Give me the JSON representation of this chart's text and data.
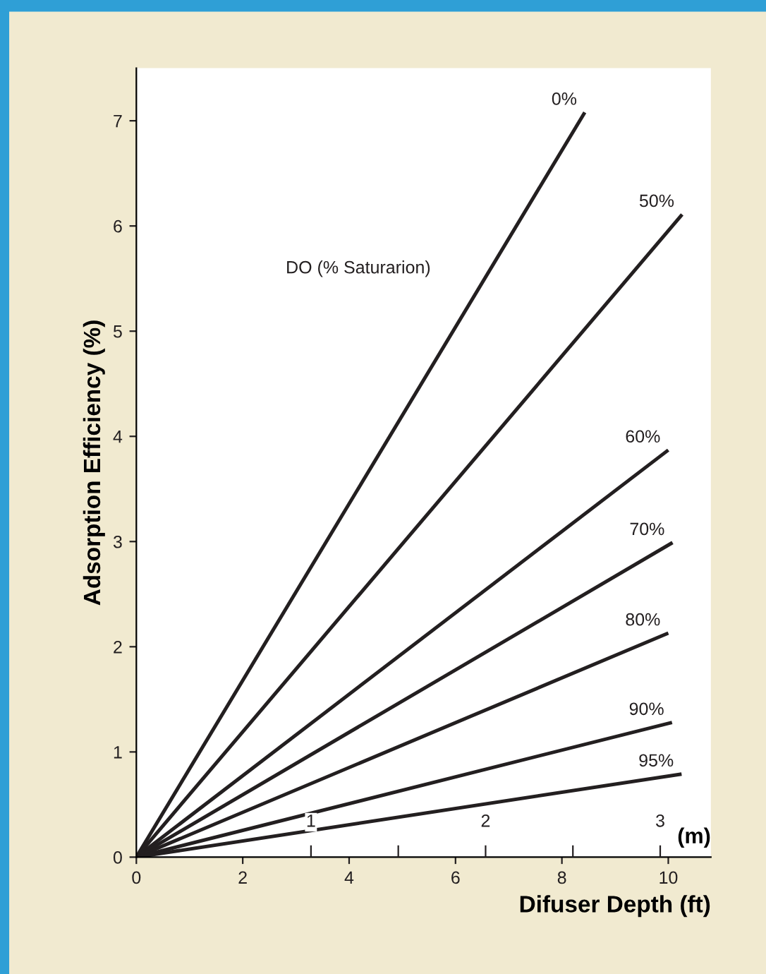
{
  "chart_data": {
    "type": "line",
    "xlabel": "Difuser Depth (ft)",
    "ylabel": "Adsorption Efficiency (%)",
    "xlim": [
      0,
      10.8
    ],
    "ylim": [
      0,
      7.5
    ],
    "xticks": [
      0,
      2,
      4,
      6,
      8,
      10
    ],
    "yticks": [
      0,
      1,
      2,
      3,
      4,
      5,
      6,
      7
    ],
    "x2lim": [
      0,
      3.29
    ],
    "x2ticks": [
      1,
      {
        "value": 1.5,
        "label": null
      },
      2,
      {
        "value": 2.5,
        "label": null
      },
      3
    ],
    "x2label": "(m)",
    "annotations": [
      "DO (% Saturarion)"
    ],
    "grid": false,
    "legend": false,
    "marker": "none",
    "line_style": "solid",
    "series": [
      {
        "name": "0%",
        "color": "#231f20",
        "x": [
          0,
          8.43
        ],
        "values": [
          0,
          7.08
        ]
      },
      {
        "name": "50%",
        "color": "#231f20",
        "x": [
          0,
          10.26
        ],
        "values": [
          0,
          6.11
        ]
      },
      {
        "name": "60%",
        "color": "#231f20",
        "x": [
          0,
          10.0
        ],
        "values": [
          0,
          3.87
        ]
      },
      {
        "name": "70%",
        "color": "#231f20",
        "x": [
          0,
          10.08
        ],
        "values": [
          0,
          2.99
        ]
      },
      {
        "name": "80%",
        "color": "#231f20",
        "x": [
          0,
          10.0
        ],
        "values": [
          0,
          2.13
        ]
      },
      {
        "name": "90%",
        "color": "#231f20",
        "x": [
          0,
          10.07
        ],
        "values": [
          0,
          1.28
        ]
      },
      {
        "name": "95%",
        "color": "#231f20",
        "x": [
          0,
          10.25
        ],
        "values": [
          0,
          0.79
        ]
      }
    ]
  }
}
